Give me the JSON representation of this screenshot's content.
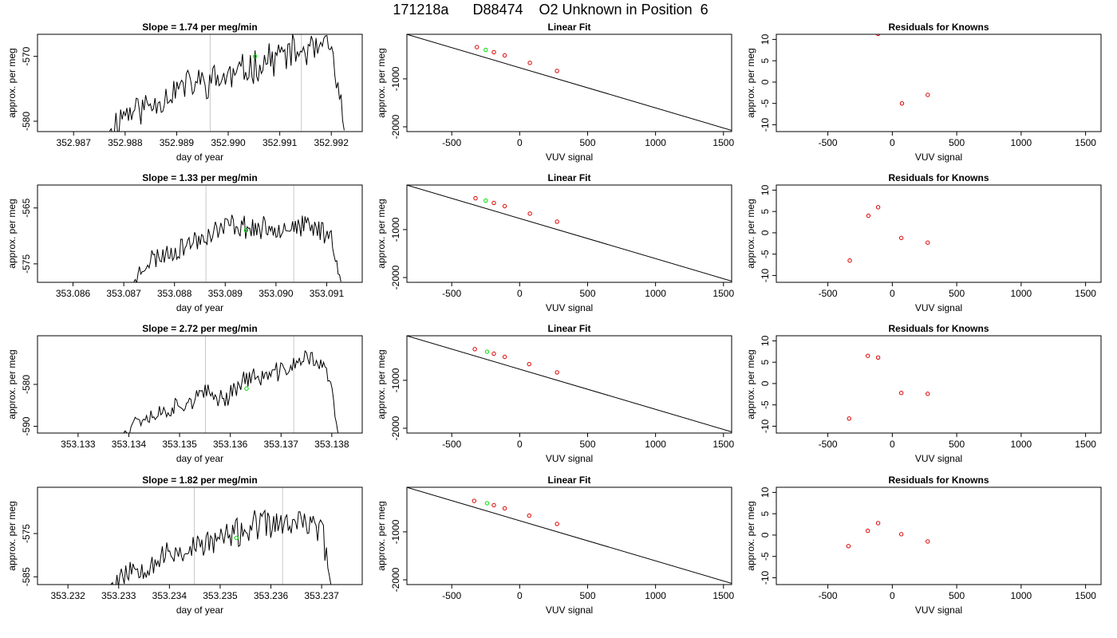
{
  "figure": {
    "title": "171218a      D88474    O2 Unknown in Position  6"
  },
  "chart_data": [
    {
      "type": "line",
      "panel": "trace",
      "row": 1,
      "title": "Slope =  1.74  per meg/min",
      "xlabel": "day of year",
      "ylabel": "approx. per meg",
      "xlim": [
        352.9863,
        352.9926
      ],
      "ylim": [
        -581.6,
        -566.6
      ],
      "xticks": [
        "352.987",
        "352.988",
        "352.989",
        "352.990",
        "352.991",
        "352.992"
      ],
      "yticks": [
        "-570",
        "-580"
      ],
      "vlines": [
        352.98965,
        352.99142
      ],
      "marker": {
        "x": 352.99052,
        "y": -570.0,
        "color": "#00dd00"
      },
      "seed": 11,
      "anchors": [
        [
          352.9877,
          -581.5
        ],
        [
          352.98795,
          -578.8
        ],
        [
          352.9885,
          -577.5
        ],
        [
          352.9891,
          -574.6
        ],
        [
          352.9895,
          -574.0
        ],
        [
          352.9901,
          -573.0
        ],
        [
          352.9906,
          -571.1
        ],
        [
          352.9911,
          -569.6
        ],
        [
          352.9916,
          -569.2
        ],
        [
          352.992,
          -568.8
        ],
        [
          352.99225,
          -581.4
        ]
      ],
      "noise": 2.3
    },
    {
      "type": "line",
      "panel": "fit",
      "row": 1,
      "title": "Linear Fit",
      "xlabel": "VUV signal",
      "ylabel": "approx. per meg",
      "xlim": [
        -830,
        1560
      ],
      "ylim": [
        -2100,
        -70
      ],
      "xticks": [
        "-500",
        "0",
        "500",
        "1000",
        "1500"
      ],
      "yticks": [
        "-1000",
        "-2000"
      ],
      "line": {
        "x": [
          -830,
          1560
        ],
        "y": [
          -72,
          -2075
        ]
      },
      "knowns": {
        "x": [
          -315,
          -190,
          -110,
          75,
          275
        ],
        "y": [
          -338,
          -444,
          -511,
          -666,
          -834
        ]
      },
      "unknown": {
        "x": -250,
        "y": -395
      }
    },
    {
      "type": "scatter",
      "panel": "residuals",
      "row": 1,
      "title": "Residuals for Knowns",
      "xlabel": "VUV signal",
      "ylabel": "",
      "xlim": [
        -900,
        1620
      ],
      "ylim": [
        -11.6,
        11.2
      ],
      "xticks": [
        "-500",
        "0",
        "500",
        "1000",
        "1500"
      ],
      "yticks": [
        "10",
        "5",
        "0",
        "-5",
        "-10"
      ],
      "x": [
        75,
        275,
        -110
      ],
      "y": [
        -5.0,
        -3.0,
        11.3
      ]
    },
    {
      "type": "line",
      "panel": "trace",
      "row": 2,
      "title": "Slope =  1.33  per meg/min",
      "xlabel": "day of year",
      "ylabel": "approx. per meg",
      "xlim": [
        353.0853,
        353.0917
      ],
      "ylim": [
        -578.3,
        -560.9
      ],
      "xticks": [
        "353.086",
        "353.087",
        "353.088",
        "353.089",
        "353.090",
        "353.091"
      ],
      "yticks": [
        "-565",
        "-575"
      ],
      "vlines": [
        353.08862,
        353.09035
      ],
      "marker": {
        "x": 353.08941,
        "y": -569.0,
        "color": "#00dd00"
      },
      "seed": 23,
      "anchors": [
        [
          353.0872,
          -578.2
        ],
        [
          353.08745,
          -574.5
        ],
        [
          353.088,
          -572.6
        ],
        [
          353.0886,
          -570.0
        ],
        [
          353.0891,
          -567.9
        ],
        [
          353.0897,
          -568.8
        ],
        [
          353.0902,
          -568.2
        ],
        [
          353.0908,
          -568.6
        ],
        [
          353.0911,
          -570.0
        ],
        [
          353.09128,
          -578.2
        ]
      ],
      "noise": 1.8
    },
    {
      "type": "line",
      "panel": "fit",
      "row": 2,
      "title": "Linear Fit",
      "xlabel": "VUV signal",
      "ylabel": "approx. per meg",
      "xlim": [
        -830,
        1560
      ],
      "ylim": [
        -2100,
        -70
      ],
      "xticks": [
        "-500",
        "0",
        "500",
        "1000",
        "1500"
      ],
      "yticks": [
        "-1000",
        "-2000"
      ],
      "line": {
        "x": [
          -830,
          1560
        ],
        "y": [
          -72,
          -2075
        ]
      },
      "knowns": {
        "x": [
          -325,
          -190,
          -110,
          75,
          275
        ],
        "y": [
          -346,
          -444,
          -511,
          -666,
          -834
        ]
      },
      "unknown": {
        "x": -250,
        "y": -395
      }
    },
    {
      "type": "scatter",
      "panel": "residuals",
      "row": 2,
      "title": "Residuals for Knowns",
      "xlabel": "VUV signal",
      "ylabel": "",
      "xlim": [
        -900,
        1620
      ],
      "ylim": [
        -11.6,
        11.2
      ],
      "xticks": [
        "-500",
        "0",
        "500",
        "1000",
        "1500"
      ],
      "yticks": [
        "10",
        "5",
        "0",
        "-5",
        "-10"
      ],
      "x": [
        -330,
        -185,
        -110,
        70,
        275
      ],
      "y": [
        -6.5,
        4.0,
        6.0,
        -1.2,
        -2.3
      ]
    },
    {
      "type": "line",
      "panel": "trace",
      "row": 3,
      "title": "Slope =  2.72  per meg/min",
      "xlabel": "day of year",
      "ylabel": "approx. per meg",
      "xlim": [
        353.1322,
        353.1386
      ],
      "ylim": [
        -591.6,
        -568.4
      ],
      "xticks": [
        "353.133",
        "353.134",
        "353.135",
        "353.136",
        "353.137",
        "353.138"
      ],
      "yticks": [
        "-580",
        "-590"
      ],
      "vlines": [
        353.13551,
        353.13725
      ],
      "marker": {
        "x": 353.13632,
        "y": -581.0,
        "color": "#00dd00"
      },
      "seed": 37,
      "anchors": [
        [
          353.1339,
          -591.5
        ],
        [
          353.1341,
          -588.5
        ],
        [
          353.1346,
          -586.8
        ],
        [
          353.1351,
          -584.4
        ],
        [
          353.1355,
          -582.3
        ],
        [
          353.1359,
          -583.3
        ],
        [
          353.1363,
          -578.4
        ],
        [
          353.1367,
          -578.2
        ],
        [
          353.1371,
          -576.3
        ],
        [
          353.1376,
          -573.2
        ],
        [
          353.13795,
          -578.0
        ],
        [
          353.13812,
          -591.5
        ]
      ],
      "noise": 2.0
    },
    {
      "type": "line",
      "panel": "fit",
      "row": 3,
      "title": "Linear Fit",
      "xlabel": "VUV signal",
      "ylabel": "approx. per meg",
      "xlim": [
        -830,
        1560
      ],
      "ylim": [
        -2100,
        -70
      ],
      "xticks": [
        "-500",
        "0",
        "500",
        "1000",
        "1500"
      ],
      "yticks": [
        "-1000",
        "-2000"
      ],
      "line": {
        "x": [
          -830,
          1560
        ],
        "y": [
          -72,
          -2075
        ]
      },
      "knowns": {
        "x": [
          -330,
          -190,
          -110,
          70,
          275
        ],
        "y": [
          -350,
          -444,
          -511,
          -662,
          -834
        ]
      },
      "unknown": {
        "x": -240,
        "y": -403
      }
    },
    {
      "type": "scatter",
      "panel": "residuals",
      "row": 3,
      "title": "Residuals for Knowns",
      "xlabel": "VUV signal",
      "ylabel": "",
      "xlim": [
        -900,
        1620
      ],
      "ylim": [
        -11.6,
        11.2
      ],
      "xticks": [
        "-500",
        "0",
        "500",
        "1000",
        "1500"
      ],
      "yticks": [
        "10",
        "5",
        "0",
        "-5",
        "-10"
      ],
      "x": [
        -335,
        -190,
        -110,
        70,
        275
      ],
      "y": [
        -8.2,
        6.5,
        6.1,
        -2.2,
        -2.4
      ]
    },
    {
      "type": "line",
      "panel": "trace",
      "row": 4,
      "title": "Slope =  1.82  per meg/min",
      "xlabel": "day of year",
      "ylabel": "approx. per meg",
      "xlim": [
        353.2314,
        353.2378
      ],
      "ylim": [
        -586.8,
        -564.3
      ],
      "xticks": [
        "353.232",
        "353.233",
        "353.234",
        "353.235",
        "353.236",
        "353.237"
      ],
      "yticks": [
        "-575",
        "-585"
      ],
      "vlines": [
        353.23449,
        353.23623
      ],
      "marker": {
        "x": 353.23532,
        "y": -576.0,
        "color": "#00dd00"
      },
      "seed": 53,
      "anchors": [
        [
          353.23285,
          -586.7
        ],
        [
          353.2331,
          -583.8
        ],
        [
          353.2336,
          -581.8
        ],
        [
          353.2341,
          -579.4
        ],
        [
          353.2345,
          -578.3
        ],
        [
          353.235,
          -576.2
        ],
        [
          353.2354,
          -574.7
        ],
        [
          353.2358,
          -572.8
        ],
        [
          353.2363,
          -573.0
        ],
        [
          353.2367,
          -572.5
        ],
        [
          353.237,
          -573.8
        ],
        [
          353.23718,
          -586.7
        ]
      ],
      "noise": 3.0
    },
    {
      "type": "line",
      "panel": "fit",
      "row": 4,
      "title": "Linear Fit",
      "xlabel": "VUV signal",
      "ylabel": "approx. per meg",
      "xlim": [
        -830,
        1560
      ],
      "ylim": [
        -2100,
        -70
      ],
      "xticks": [
        "-500",
        "0",
        "500",
        "1000",
        "1500"
      ],
      "yticks": [
        "-1000",
        "-2000"
      ],
      "line": {
        "x": [
          -830,
          1560
        ],
        "y": [
          -72,
          -2075
        ]
      },
      "knowns": {
        "x": [
          -335,
          -190,
          -110,
          70,
          275
        ],
        "y": [
          -354,
          -444,
          -511,
          -662,
          -834
        ]
      },
      "unknown": {
        "x": -240,
        "y": -403
      }
    },
    {
      "type": "scatter",
      "panel": "residuals",
      "row": 4,
      "title": "Residuals for Knowns",
      "xlabel": "VUV signal",
      "ylabel": "",
      "xlim": [
        -900,
        1620
      ],
      "ylim": [
        -11.6,
        11.2
      ],
      "xticks": [
        "-500",
        "0",
        "500",
        "1000",
        "1500"
      ],
      "yticks": [
        "10",
        "5",
        "0",
        "-5",
        "-10"
      ],
      "x": [
        -340,
        -190,
        -110,
        70,
        275
      ],
      "y": [
        -2.6,
        1.0,
        2.8,
        0.2,
        -1.5
      ]
    }
  ],
  "colors": {
    "trace": "#000000",
    "vline": "#c8c8c8",
    "known_point": "#dd0000",
    "unknown_point": "#00dd00",
    "fit_line": "#000000"
  }
}
